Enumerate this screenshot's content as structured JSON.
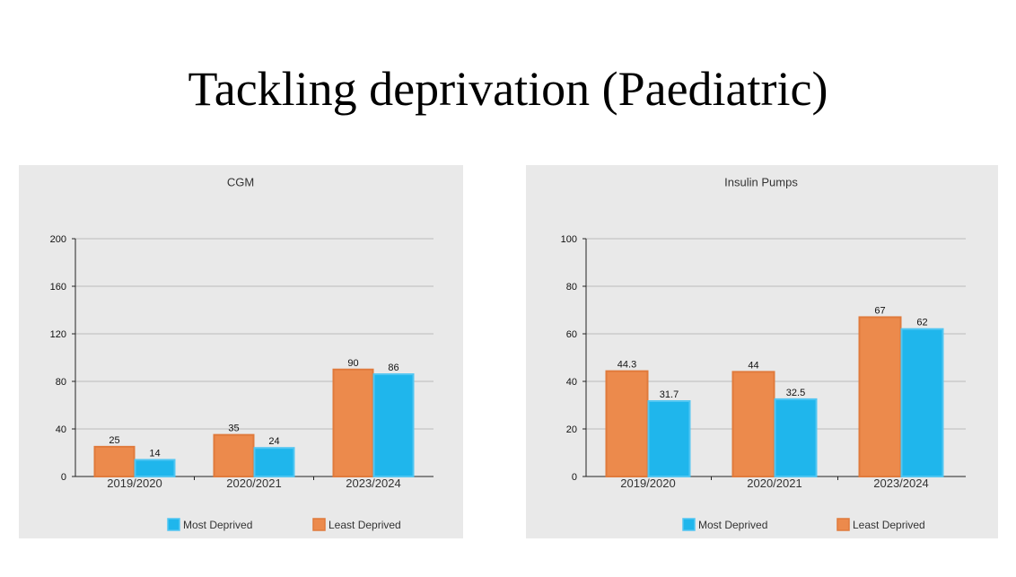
{
  "slide": {
    "title": "Tackling deprivation (Paediatric)"
  },
  "colors": {
    "least": "#ec8a4c",
    "least_edge": "#e07a3c",
    "most": "#1fb6ec",
    "most_edge": "#52c6f2",
    "grid": "#bbbbbb",
    "panel": "#e9e9e9"
  },
  "chart_data": [
    {
      "type": "bar",
      "title": "CGM",
      "categories": [
        "2019/2020",
        "2020/2021",
        "2023/2024"
      ],
      "ylim": [
        0,
        200
      ],
      "yticks": [
        0,
        40,
        80,
        120,
        160,
        200
      ],
      "grid": true,
      "legend_position": "bottom",
      "series": [
        {
          "name": "Least Deprived",
          "color": "#ec8a4c",
          "values": [
            25,
            35,
            90
          ],
          "labels": [
            "25",
            "35",
            "90"
          ]
        },
        {
          "name": "Most Deprived",
          "color": "#1fb6ec",
          "values": [
            14,
            24,
            86
          ],
          "labels": [
            "14",
            "24",
            "86"
          ]
        }
      ],
      "legend": [
        "Most Deprived",
        "Least Deprived"
      ]
    },
    {
      "type": "bar",
      "title": "Insulin Pumps",
      "categories": [
        "2019/2020",
        "2020/2021",
        "2023/2024"
      ],
      "ylim": [
        0,
        100
      ],
      "yticks": [
        0,
        20,
        40,
        60,
        80,
        100
      ],
      "grid": true,
      "legend_position": "bottom",
      "series": [
        {
          "name": "Least Deprived",
          "color": "#ec8a4c",
          "values": [
            44.3,
            44,
            67
          ],
          "labels": [
            "44.3",
            "44",
            "67"
          ]
        },
        {
          "name": "Most Deprived",
          "color": "#1fb6ec",
          "values": [
            31.7,
            32.5,
            62
          ],
          "labels": [
            "31.7",
            "32.5",
            "62"
          ]
        }
      ],
      "legend": [
        "Most Deprived",
        "Least Deprived"
      ]
    }
  ]
}
